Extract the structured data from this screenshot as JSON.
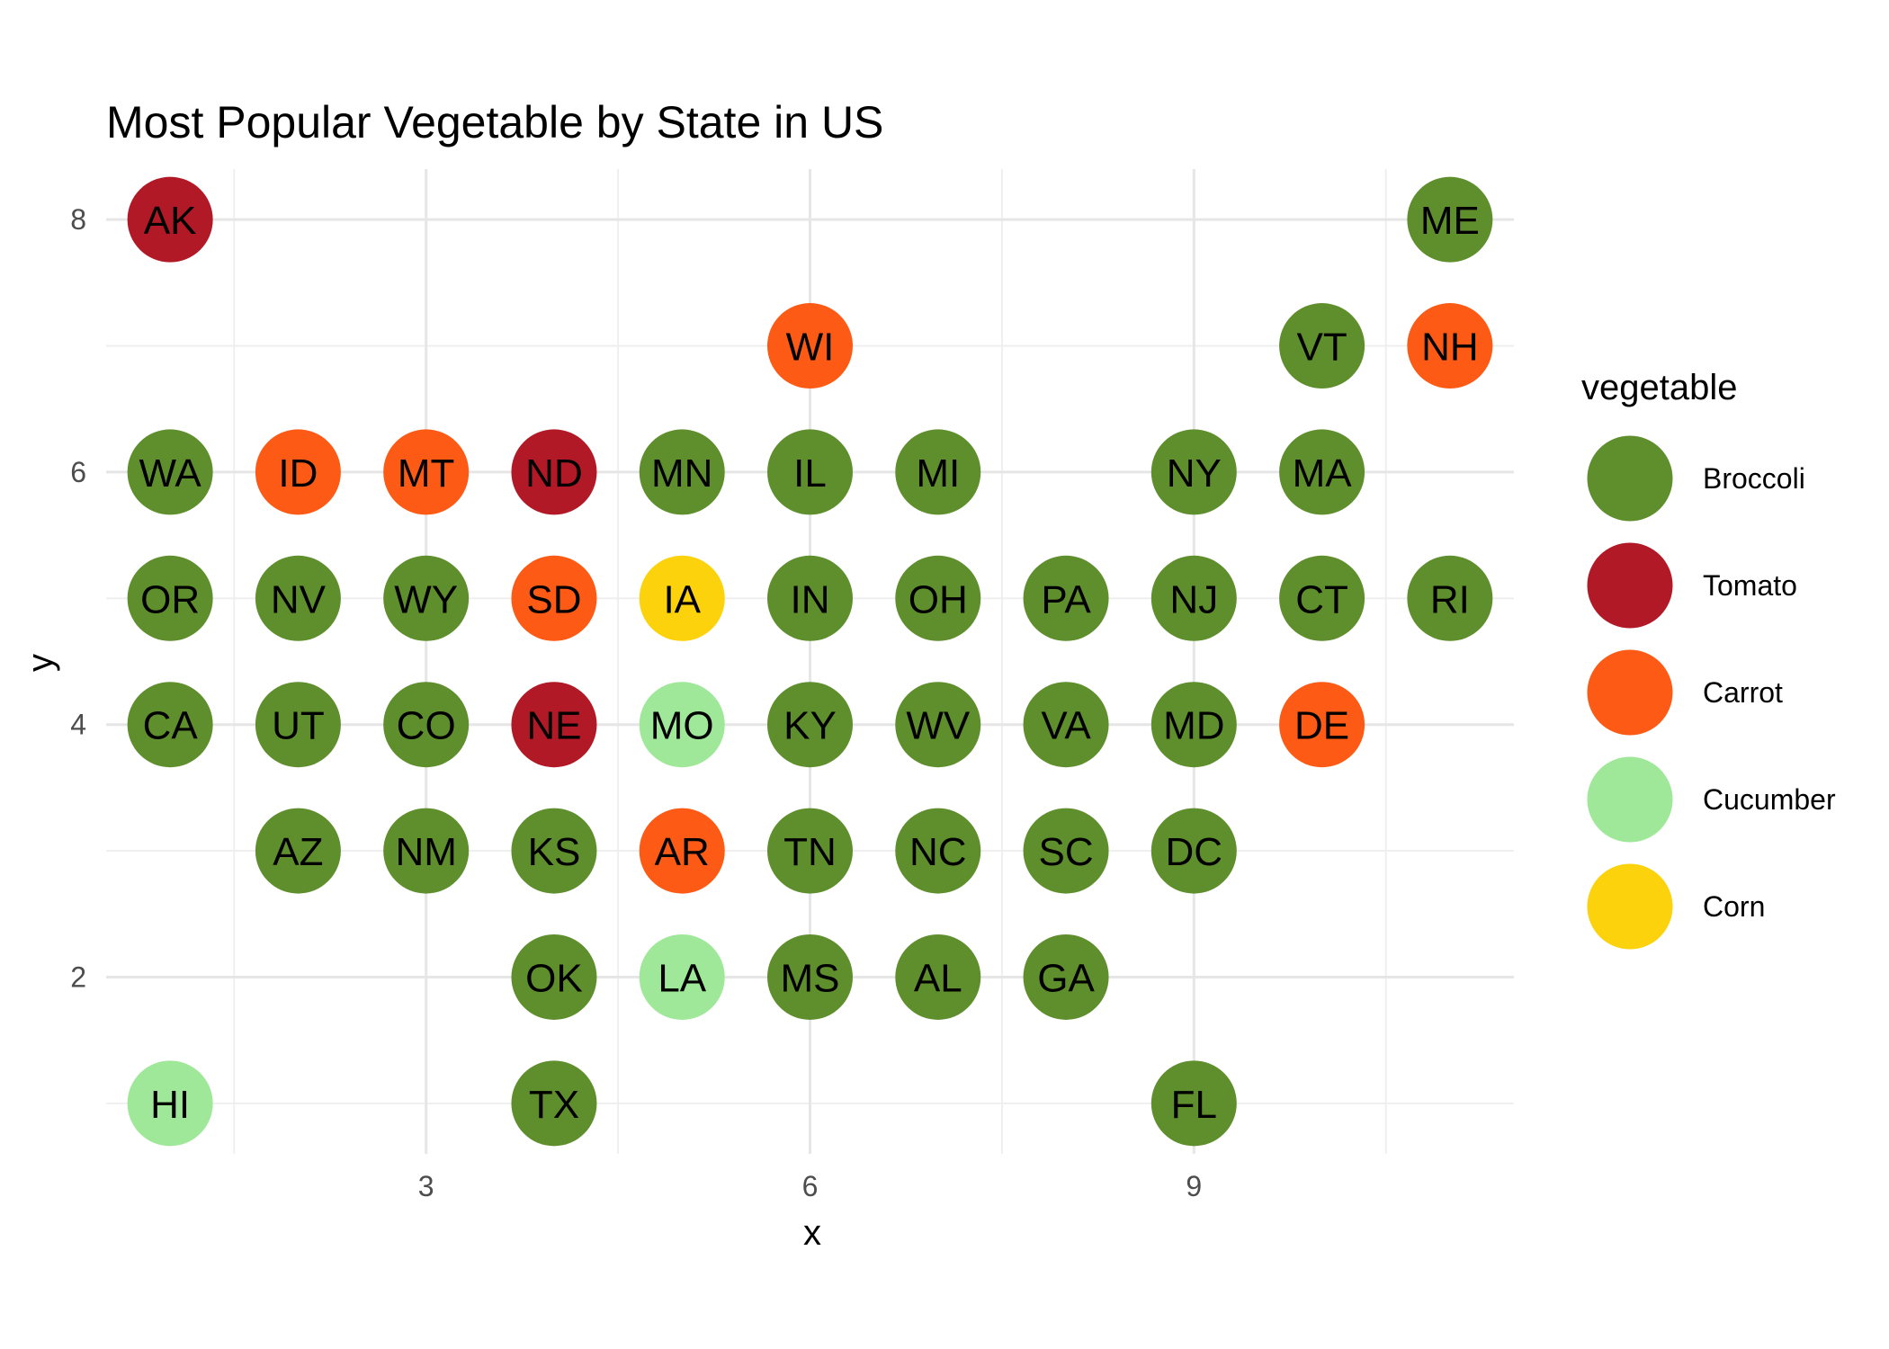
{
  "chart_data": {
    "type": "scatter",
    "title": "Most Popular Vegetable by State in US",
    "xlabel": "x",
    "ylabel": "y",
    "xlim": [
      0.5,
      11.5
    ],
    "ylim": [
      0.6,
      8.4
    ],
    "x_ticks": [
      3,
      6,
      9
    ],
    "y_ticks": [
      2,
      4,
      6,
      8
    ],
    "grid": true,
    "legend": {
      "title": "vegetable",
      "position": "right",
      "entries": [
        {
          "name": "Broccoli",
          "color": "#5f8f2d"
        },
        {
          "name": "Tomato",
          "color": "#b01925"
        },
        {
          "name": "Carrot",
          "color": "#fc5a15"
        },
        {
          "name": "Cucumber",
          "color": "#a0e899"
        },
        {
          "name": "Corn",
          "color": "#fcd20c"
        }
      ]
    },
    "points": [
      {
        "label": "AK",
        "x": 1,
        "y": 8,
        "vegetable": "Tomato"
      },
      {
        "label": "ME",
        "x": 11,
        "y": 8,
        "vegetable": "Broccoli"
      },
      {
        "label": "WI",
        "x": 6,
        "y": 7,
        "vegetable": "Carrot"
      },
      {
        "label": "VT",
        "x": 10,
        "y": 7,
        "vegetable": "Broccoli"
      },
      {
        "label": "NH",
        "x": 11,
        "y": 7,
        "vegetable": "Carrot"
      },
      {
        "label": "WA",
        "x": 1,
        "y": 6,
        "vegetable": "Broccoli"
      },
      {
        "label": "ID",
        "x": 2,
        "y": 6,
        "vegetable": "Carrot"
      },
      {
        "label": "MT",
        "x": 3,
        "y": 6,
        "vegetable": "Carrot"
      },
      {
        "label": "ND",
        "x": 4,
        "y": 6,
        "vegetable": "Tomato"
      },
      {
        "label": "MN",
        "x": 5,
        "y": 6,
        "vegetable": "Broccoli"
      },
      {
        "label": "IL",
        "x": 6,
        "y": 6,
        "vegetable": "Broccoli"
      },
      {
        "label": "MI",
        "x": 7,
        "y": 6,
        "vegetable": "Broccoli"
      },
      {
        "label": "NY",
        "x": 9,
        "y": 6,
        "vegetable": "Broccoli"
      },
      {
        "label": "MA",
        "x": 10,
        "y": 6,
        "vegetable": "Broccoli"
      },
      {
        "label": "OR",
        "x": 1,
        "y": 5,
        "vegetable": "Broccoli"
      },
      {
        "label": "NV",
        "x": 2,
        "y": 5,
        "vegetable": "Broccoli"
      },
      {
        "label": "WY",
        "x": 3,
        "y": 5,
        "vegetable": "Broccoli"
      },
      {
        "label": "SD",
        "x": 4,
        "y": 5,
        "vegetable": "Carrot"
      },
      {
        "label": "IA",
        "x": 5,
        "y": 5,
        "vegetable": "Corn"
      },
      {
        "label": "IN",
        "x": 6,
        "y": 5,
        "vegetable": "Broccoli"
      },
      {
        "label": "OH",
        "x": 7,
        "y": 5,
        "vegetable": "Broccoli"
      },
      {
        "label": "PA",
        "x": 8,
        "y": 5,
        "vegetable": "Broccoli"
      },
      {
        "label": "NJ",
        "x": 9,
        "y": 5,
        "vegetable": "Broccoli"
      },
      {
        "label": "CT",
        "x": 10,
        "y": 5,
        "vegetable": "Broccoli"
      },
      {
        "label": "RI",
        "x": 11,
        "y": 5,
        "vegetable": "Broccoli"
      },
      {
        "label": "CA",
        "x": 1,
        "y": 4,
        "vegetable": "Broccoli"
      },
      {
        "label": "UT",
        "x": 2,
        "y": 4,
        "vegetable": "Broccoli"
      },
      {
        "label": "CO",
        "x": 3,
        "y": 4,
        "vegetable": "Broccoli"
      },
      {
        "label": "NE",
        "x": 4,
        "y": 4,
        "vegetable": "Tomato"
      },
      {
        "label": "MO",
        "x": 5,
        "y": 4,
        "vegetable": "Cucumber"
      },
      {
        "label": "KY",
        "x": 6,
        "y": 4,
        "vegetable": "Broccoli"
      },
      {
        "label": "WV",
        "x": 7,
        "y": 4,
        "vegetable": "Broccoli"
      },
      {
        "label": "VA",
        "x": 8,
        "y": 4,
        "vegetable": "Broccoli"
      },
      {
        "label": "MD",
        "x": 9,
        "y": 4,
        "vegetable": "Broccoli"
      },
      {
        "label": "DE",
        "x": 10,
        "y": 4,
        "vegetable": "Carrot"
      },
      {
        "label": "AZ",
        "x": 2,
        "y": 3,
        "vegetable": "Broccoli"
      },
      {
        "label": "NM",
        "x": 3,
        "y": 3,
        "vegetable": "Broccoli"
      },
      {
        "label": "KS",
        "x": 4,
        "y": 3,
        "vegetable": "Broccoli"
      },
      {
        "label": "AR",
        "x": 5,
        "y": 3,
        "vegetable": "Carrot"
      },
      {
        "label": "TN",
        "x": 6,
        "y": 3,
        "vegetable": "Broccoli"
      },
      {
        "label": "NC",
        "x": 7,
        "y": 3,
        "vegetable": "Broccoli"
      },
      {
        "label": "SC",
        "x": 8,
        "y": 3,
        "vegetable": "Broccoli"
      },
      {
        "label": "DC",
        "x": 9,
        "y": 3,
        "vegetable": "Broccoli"
      },
      {
        "label": "OK",
        "x": 4,
        "y": 2,
        "vegetable": "Broccoli"
      },
      {
        "label": "LA",
        "x": 5,
        "y": 2,
        "vegetable": "Cucumber"
      },
      {
        "label": "MS",
        "x": 6,
        "y": 2,
        "vegetable": "Broccoli"
      },
      {
        "label": "AL",
        "x": 7,
        "y": 2,
        "vegetable": "Broccoli"
      },
      {
        "label": "GA",
        "x": 8,
        "y": 2,
        "vegetable": "Broccoli"
      },
      {
        "label": "HI",
        "x": 1,
        "y": 1,
        "vegetable": "Cucumber"
      },
      {
        "label": "TX",
        "x": 4,
        "y": 1,
        "vegetable": "Broccoli"
      },
      {
        "label": "FL",
        "x": 9,
        "y": 1,
        "vegetable": "Broccoli"
      }
    ]
  }
}
